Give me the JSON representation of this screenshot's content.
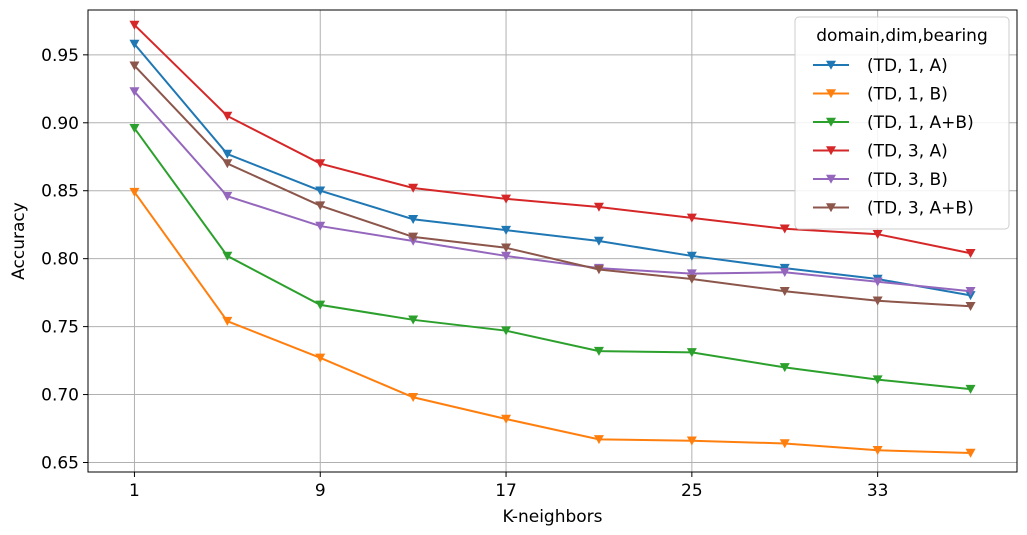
{
  "chart_data": {
    "type": "line",
    "xlabel": "K-neighbors",
    "ylabel": "Accuracy",
    "x": [
      1,
      5,
      9,
      13,
      17,
      21,
      25,
      29,
      33,
      37
    ],
    "xticks": [
      1,
      9,
      17,
      25,
      33
    ],
    "xlim": [
      -1,
      39
    ],
    "yticks": [
      0.65,
      0.7,
      0.75,
      0.8,
      0.85,
      0.9,
      0.95
    ],
    "ylim": [
      0.643,
      0.983
    ],
    "grid": true,
    "marker": "triangle-down",
    "legend": {
      "title": "domain,dim,bearing",
      "placement": "top-right"
    },
    "series": [
      {
        "name": "(TD, 1, A)",
        "color": "#1f77b4",
        "values": [
          0.958,
          0.877,
          0.85,
          0.829,
          0.821,
          0.813,
          0.802,
          0.793,
          0.785,
          0.773
        ]
      },
      {
        "name": "(TD, 1, B)",
        "color": "#ff7f0e",
        "values": [
          0.849,
          0.754,
          0.727,
          0.698,
          0.682,
          0.667,
          0.666,
          0.664,
          0.659,
          0.657
        ]
      },
      {
        "name": "(TD, 1, A+B)",
        "color": "#2ca02c",
        "values": [
          0.896,
          0.802,
          0.766,
          0.755,
          0.747,
          0.732,
          0.731,
          0.72,
          0.711,
          0.704
        ]
      },
      {
        "name": "(TD, 3, A)",
        "color": "#d62728",
        "values": [
          0.972,
          0.905,
          0.87,
          0.852,
          0.844,
          0.838,
          0.83,
          0.822,
          0.818,
          0.804
        ]
      },
      {
        "name": "(TD, 3, B)",
        "color": "#9467bd",
        "values": [
          0.923,
          0.846,
          0.824,
          0.813,
          0.802,
          0.793,
          0.789,
          0.79,
          0.783,
          0.776
        ]
      },
      {
        "name": "(TD, 3, A+B)",
        "color": "#8c564b",
        "values": [
          0.942,
          0.87,
          0.839,
          0.816,
          0.808,
          0.792,
          0.785,
          0.776,
          0.769,
          0.765
        ]
      }
    ]
  }
}
